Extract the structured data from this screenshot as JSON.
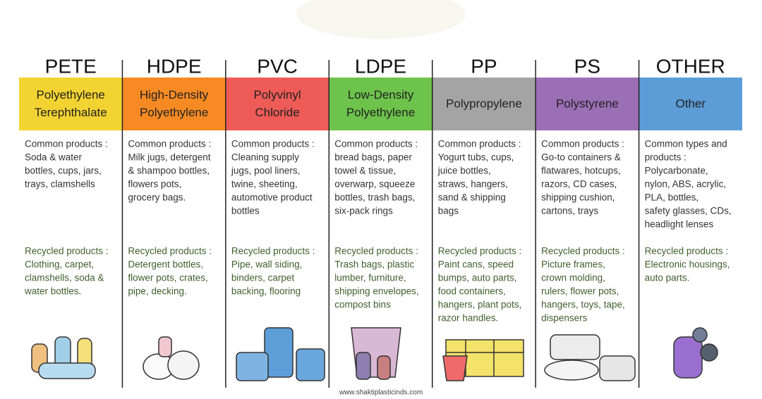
{
  "columns": [
    {
      "code": "PETE",
      "color": "#f3d331",
      "name": [
        "Polyethylene",
        "Terephthalate"
      ],
      "common_label": [
        "Common products :"
      ],
      "common": [
        "Soda & water",
        "bottles, cups, jars,",
        "trays, clamshells"
      ],
      "recycled_label": "Recycled products :",
      "recycled": [
        "Clothing, carpet,",
        "clamshells, soda &",
        "water bottles."
      ]
    },
    {
      "code": "HDPE",
      "color": "#f78a22",
      "name": [
        "High-Density",
        "Polyethylene"
      ],
      "common_label": [
        "Common products :"
      ],
      "common": [
        "Milk jugs, detergent",
        "& shampoo bottles,",
        "flowers pots,",
        "grocery bags."
      ],
      "recycled_label": "Recycled products :",
      "recycled": [
        "Detergent bottles,",
        "flower pots, crates,",
        "pipe, decking."
      ]
    },
    {
      "code": "PVC",
      "color": "#ef5b57",
      "name": [
        "Polyvinyl",
        "Chloride"
      ],
      "common_label": [
        "Common products :"
      ],
      "common": [
        "Cleaning supply",
        "jugs, pool liners,",
        "twine, sheeting,",
        "automotive product",
        "bottles"
      ],
      "recycled_label": "Recycled products :",
      "recycled": [
        "Pipe, wall siding,",
        "binders, carpet",
        "backing, flooring"
      ]
    },
    {
      "code": "LDPE",
      "color": "#6dc34b",
      "name": [
        "Low-Density",
        "Polyethylene"
      ],
      "common_label": [
        "Common products :"
      ],
      "common": [
        "bread bags, paper",
        "towel & tissue,",
        "overwarp, squeeze",
        "bottles, trash bags,",
        "six-pack rings"
      ],
      "recycled_label": "Recycled products :",
      "recycled": [
        "Trash bags, plastic",
        "lumber, furniture,",
        "shipping envelopes,",
        "compost bins"
      ]
    },
    {
      "code": "PP",
      "color": "#a4a4a4",
      "name": [
        "Polypropylene"
      ],
      "common_label": [
        "Common products :"
      ],
      "common": [
        "Yogurt tubs, cups,",
        "juice bottles,",
        "straws, hangers,",
        "sand & shipping",
        "bags"
      ],
      "recycled_label": "Recycled products :",
      "recycled": [
        "Paint cans, speed",
        "bumps, auto parts,",
        "food containers,",
        "hangers, plant pots,",
        "razor handles."
      ]
    },
    {
      "code": "PS",
      "color": "#9b6fb6",
      "name": [
        "Polystyrene"
      ],
      "common_label": [
        "Common products :"
      ],
      "common": [
        "Go-to containers &",
        "flatwares, hotcups,",
        "razors, CD cases,",
        "shipping cushion,",
        "cartons, trays"
      ],
      "recycled_label": "Recycled products :",
      "recycled": [
        "Picture frames,",
        "crown molding,",
        "rulers, flower pots,",
        "hangers, toys, tape,",
        "dispensers"
      ]
    },
    {
      "code": "OTHER",
      "color": "#5c9dd7",
      "name": [
        "Other"
      ],
      "common_label": [
        "Common types and",
        "products :"
      ],
      "common": [
        "Polycarbonate,",
        "nylon, ABS, acrylic,",
        "PLA, bottles,",
        "safety glasses, CDs,",
        "headlight lenses"
      ],
      "recycled_label": "Recycled products :",
      "recycled": [
        "Electronic housings,",
        "auto parts."
      ]
    }
  ],
  "footer": "www.shaktiplasticinds.com"
}
